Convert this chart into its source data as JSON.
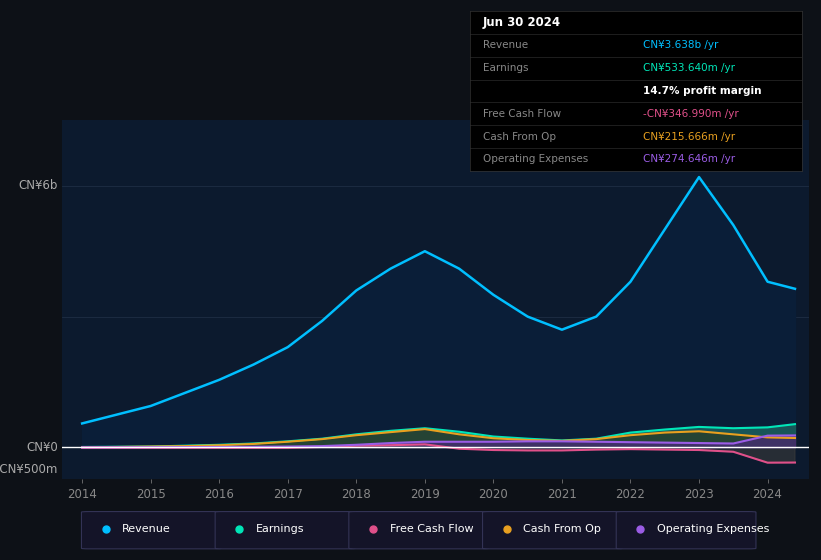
{
  "bg_color": "#0d1117",
  "chart_bg": "#0c1a2e",
  "x_years": [
    2014.0,
    2014.5,
    2015.0,
    2015.5,
    2016.0,
    2016.5,
    2017.0,
    2017.5,
    2018.0,
    2018.5,
    2019.0,
    2019.5,
    2020.0,
    2020.5,
    2021.0,
    2021.5,
    2022.0,
    2022.5,
    2023.0,
    2023.5,
    2024.0,
    2024.4
  ],
  "revenue": [
    0.55,
    0.75,
    0.95,
    1.25,
    1.55,
    1.9,
    2.3,
    2.9,
    3.6,
    4.1,
    4.5,
    4.1,
    3.5,
    3.0,
    2.7,
    3.0,
    3.8,
    5.0,
    6.2,
    5.1,
    3.8,
    3.638
  ],
  "earnings": [
    0.01,
    0.015,
    0.02,
    0.04,
    0.06,
    0.09,
    0.14,
    0.2,
    0.3,
    0.38,
    0.44,
    0.36,
    0.25,
    0.2,
    0.16,
    0.2,
    0.34,
    0.41,
    0.47,
    0.44,
    0.46,
    0.5336
  ],
  "free_cash_flow": [
    -0.01,
    -0.01,
    -0.01,
    -0.01,
    -0.01,
    -0.01,
    -0.01,
    0.01,
    0.04,
    0.05,
    0.07,
    -0.03,
    -0.06,
    -0.07,
    -0.07,
    -0.05,
    -0.04,
    -0.05,
    -0.06,
    -0.1,
    -0.35,
    -0.347
  ],
  "cash_from_op": [
    0.005,
    0.01,
    0.02,
    0.03,
    0.05,
    0.08,
    0.13,
    0.19,
    0.28,
    0.35,
    0.42,
    0.3,
    0.21,
    0.17,
    0.15,
    0.19,
    0.28,
    0.34,
    0.37,
    0.3,
    0.23,
    0.2157
  ],
  "operating_expenses": [
    0.002,
    0.003,
    0.005,
    0.007,
    0.01,
    0.015,
    0.02,
    0.03,
    0.06,
    0.1,
    0.13,
    0.13,
    0.13,
    0.14,
    0.14,
    0.13,
    0.12,
    0.11,
    0.1,
    0.09,
    0.27,
    0.2746
  ],
  "revenue_color": "#00bfff",
  "earnings_color": "#00e6b8",
  "fcf_color": "#e0508a",
  "cashfromop_color": "#e8a020",
  "opex_color": "#9b5de5",
  "earnings_fill_color": "#1a5c5c",
  "fcf_fill_color": "#3a4a3a",
  "opex_fill_color": "#4a2a7a",
  "revenue_fill_color": "#0a1e38",
  "info_box": {
    "date": "Jun 30 2024",
    "revenue_val": "CN¥3.638b",
    "revenue_color": "#00bfff",
    "earnings_val": "CN¥533.640m",
    "earnings_color": "#00e6b8",
    "profit_margin": "14.7%",
    "fcf_val": "-CN¥346.990m",
    "fcf_color": "#e0508a",
    "cashfromop_val": "CN¥215.666m",
    "cashfromop_color": "#e8a020",
    "opex_val": "CN¥274.646m",
    "opex_color": "#9b5de5"
  },
  "legend_items": [
    {
      "label": "Revenue",
      "color": "#00bfff"
    },
    {
      "label": "Earnings",
      "color": "#00e6b8"
    },
    {
      "label": "Free Cash Flow",
      "color": "#e0508a"
    },
    {
      "label": "Cash From Op",
      "color": "#e8a020"
    },
    {
      "label": "Operating Expenses",
      "color": "#9b5de5"
    }
  ],
  "x_tick_labels": [
    "2014",
    "2015",
    "2016",
    "2017",
    "2018",
    "2019",
    "2020",
    "2021",
    "2022",
    "2023",
    "2024"
  ],
  "x_tick_positions": [
    2014,
    2015,
    2016,
    2017,
    2018,
    2019,
    2020,
    2021,
    2022,
    2023,
    2024
  ],
  "ylim_min": -0.72,
  "ylim_max": 7.5,
  "cn6b_value": 6.0,
  "cnn500m_value": -0.5,
  "grid_color": "#1e2e44"
}
